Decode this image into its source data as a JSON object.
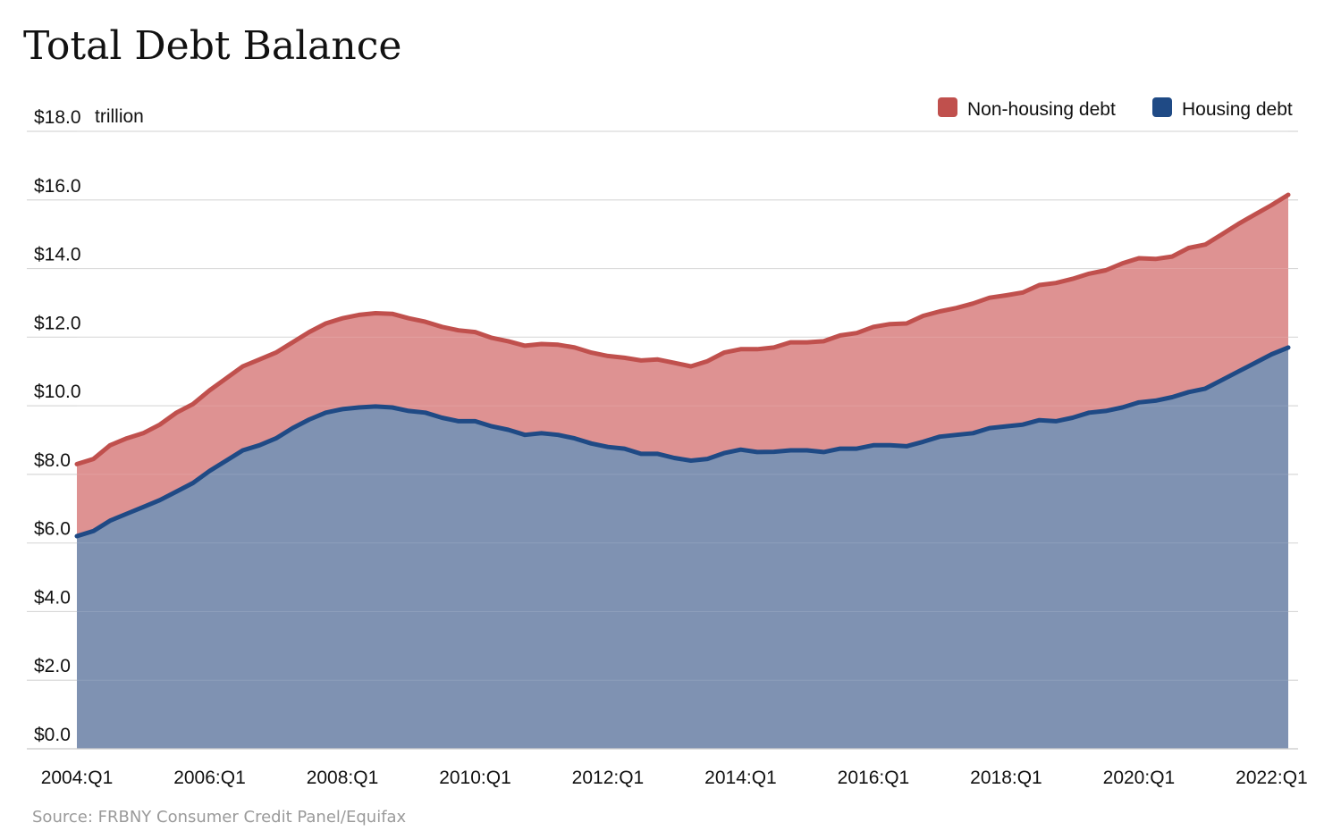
{
  "chart_data": {
    "type": "area",
    "title": "Total Debt Balance",
    "unit_label": "trillion",
    "source": "Source: FRBNY Consumer Credit Panel/Equifax",
    "y_ticks": [
      "$0.0",
      "$2.0",
      "$4.0",
      "$6.0",
      "$8.0",
      "$10.0",
      "$12.0",
      "$14.0",
      "$16.0",
      "$18.0"
    ],
    "ylim": [
      0,
      18
    ],
    "x_ticks": [
      "2004:Q1",
      "2006:Q1",
      "2008:Q1",
      "2010:Q1",
      "2012:Q1",
      "2014:Q1",
      "2016:Q1",
      "2018:Q1",
      "2020:Q1",
      "2022:Q1"
    ],
    "x": [
      "2004:Q1",
      "2004:Q2",
      "2004:Q3",
      "2004:Q4",
      "2005:Q1",
      "2005:Q2",
      "2005:Q3",
      "2005:Q4",
      "2006:Q1",
      "2006:Q2",
      "2006:Q3",
      "2006:Q4",
      "2007:Q1",
      "2007:Q2",
      "2007:Q3",
      "2007:Q4",
      "2008:Q1",
      "2008:Q2",
      "2008:Q3",
      "2008:Q4",
      "2009:Q1",
      "2009:Q2",
      "2009:Q3",
      "2009:Q4",
      "2010:Q1",
      "2010:Q2",
      "2010:Q3",
      "2010:Q4",
      "2011:Q1",
      "2011:Q2",
      "2011:Q3",
      "2011:Q4",
      "2012:Q1",
      "2012:Q2",
      "2012:Q3",
      "2012:Q4",
      "2013:Q1",
      "2013:Q2",
      "2013:Q3",
      "2013:Q4",
      "2014:Q1",
      "2014:Q2",
      "2014:Q3",
      "2014:Q4",
      "2015:Q1",
      "2015:Q2",
      "2015:Q3",
      "2015:Q4",
      "2016:Q1",
      "2016:Q2",
      "2016:Q3",
      "2016:Q4",
      "2017:Q1",
      "2017:Q2",
      "2017:Q3",
      "2017:Q4",
      "2018:Q1",
      "2018:Q2",
      "2018:Q3",
      "2018:Q4",
      "2019:Q1",
      "2019:Q2",
      "2019:Q3",
      "2019:Q4",
      "2020:Q1",
      "2020:Q2",
      "2020:Q3",
      "2020:Q4",
      "2021:Q1",
      "2021:Q2",
      "2021:Q3",
      "2021:Q4",
      "2022:Q1",
      "2022:Q2"
    ],
    "legend_position": "top-right",
    "grid": true,
    "series": [
      {
        "name": "Housing debt",
        "color": "#1f4a85",
        "fill": "#7f92b2",
        "values": [
          6.2,
          6.35,
          6.65,
          6.85,
          7.05,
          7.25,
          7.5,
          7.75,
          8.1,
          8.4,
          8.7,
          8.85,
          9.05,
          9.35,
          9.6,
          9.8,
          9.9,
          9.95,
          9.98,
          9.95,
          9.85,
          9.8,
          9.65,
          9.55,
          9.55,
          9.4,
          9.3,
          9.15,
          9.2,
          9.15,
          9.05,
          8.9,
          8.8,
          8.75,
          8.6,
          8.6,
          8.48,
          8.4,
          8.45,
          8.62,
          8.72,
          8.65,
          8.66,
          8.7,
          8.7,
          8.65,
          8.75,
          8.75,
          8.85,
          8.85,
          8.82,
          8.95,
          9.1,
          9.15,
          9.2,
          9.35,
          9.4,
          9.45,
          9.58,
          9.55,
          9.65,
          9.8,
          9.85,
          9.95,
          10.1,
          10.15,
          10.25,
          10.4,
          10.5,
          10.75,
          11.0,
          11.25,
          11.5,
          11.7
        ]
      },
      {
        "name": "Non-housing debt",
        "color": "#c0504d",
        "fill": "#de9292",
        "values": [
          8.3,
          8.45,
          8.85,
          9.05,
          9.2,
          9.45,
          9.8,
          10.05,
          10.45,
          10.8,
          11.15,
          11.35,
          11.55,
          11.85,
          12.15,
          12.4,
          12.55,
          12.65,
          12.7,
          12.68,
          12.55,
          12.45,
          12.3,
          12.2,
          12.15,
          11.98,
          11.88,
          11.75,
          11.8,
          11.78,
          11.7,
          11.55,
          11.45,
          11.4,
          11.32,
          11.35,
          11.25,
          11.15,
          11.3,
          11.55,
          11.65,
          11.65,
          11.7,
          11.85,
          11.85,
          11.88,
          12.05,
          12.12,
          12.3,
          12.38,
          12.4,
          12.62,
          12.75,
          12.85,
          12.98,
          13.15,
          13.22,
          13.3,
          13.52,
          13.58,
          13.7,
          13.85,
          13.95,
          14.15,
          14.3,
          14.28,
          14.35,
          14.6,
          14.7,
          15.0,
          15.3,
          15.58,
          15.85,
          16.15
        ]
      }
    ]
  },
  "legend": [
    {
      "label": "Non-housing debt",
      "color": "#c0504d"
    },
    {
      "label": "Housing debt",
      "color": "#1f4a85"
    }
  ]
}
